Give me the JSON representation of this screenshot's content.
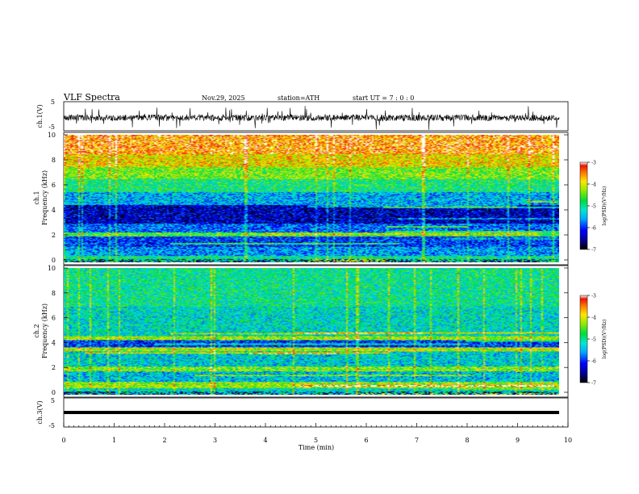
{
  "header": {
    "title": "VLF  Spectra",
    "date": "Nov.29, 2025",
    "station": "station=ATH",
    "start": "start  UT  =    7  : 0   : 0"
  },
  "chart_data": [
    {
      "type": "line",
      "name": "ch1-waveform",
      "ylabel": "ch.1(V)",
      "ylim": [
        -5,
        5
      ],
      "yticks": [
        "5",
        "-5"
      ],
      "xlim": [
        0,
        10
      ],
      "description_series": "noisy waveform centered near -0.5 V with amplitude about +/-2 V"
    },
    {
      "type": "heatmap",
      "name": "ch1-spectrogram",
      "ylabel": "ch.1\nFrequency  (kHz)",
      "ylabel_lines": [
        "ch.1",
        "Frequency  (kHz)"
      ],
      "ylim": [
        0,
        10
      ],
      "yticks": [
        "0",
        "2",
        "4",
        "6",
        "8",
        "10"
      ],
      "xlim": [
        0,
        10
      ],
      "colorbar": {
        "label": "log(PSD)(V²/Hz)",
        "range": [
          -7,
          -3
        ],
        "ticks": [
          "-3",
          "-4",
          "-5",
          "-6",
          "-7"
        ]
      },
      "bands": [
        {
          "from": 0.0,
          "to": 0.5,
          "level": -5.0
        },
        {
          "from": 0.5,
          "to": 1.2,
          "level": -5.6
        },
        {
          "from": 1.2,
          "to": 2.0,
          "level": -6.0
        },
        {
          "from": 2.0,
          "to": 2.3,
          "level": -4.6
        },
        {
          "from": 2.3,
          "to": 3.0,
          "level": -5.8
        },
        {
          "from": 3.0,
          "to": 4.5,
          "level": -6.4
        },
        {
          "from": 4.5,
          "to": 5.5,
          "level": -5.5
        },
        {
          "from": 5.5,
          "to": 6.5,
          "level": -4.9
        },
        {
          "from": 6.5,
          "to": 7.5,
          "level": -4.4
        },
        {
          "from": 7.5,
          "to": 8.5,
          "level": -3.9
        },
        {
          "from": 8.5,
          "to": 10.0,
          "level": -3.5
        }
      ]
    },
    {
      "type": "heatmap",
      "name": "ch2-spectrogram",
      "ylabel": "ch.2\nFrequency  (kHz)",
      "ylabel_lines": [
        "ch.2",
        "Frequency  (kHz)"
      ],
      "ylim": [
        0,
        10
      ],
      "yticks": [
        "0",
        "2",
        "4",
        "6",
        "8",
        "10"
      ],
      "xlim": [
        0,
        10
      ],
      "colorbar": {
        "label": "log(PSD)(V²/Hz)",
        "range": [
          -7,
          -3
        ],
        "ticks": [
          "-3",
          "-4",
          "-5",
          "-6",
          "-7"
        ]
      },
      "bands": [
        {
          "from": 0.0,
          "to": 0.5,
          "level": -5.2
        },
        {
          "from": 0.5,
          "to": 1.0,
          "level": -4.3
        },
        {
          "from": 1.0,
          "to": 1.8,
          "level": -5.4
        },
        {
          "from": 1.8,
          "to": 2.2,
          "level": -4.4
        },
        {
          "from": 2.2,
          "to": 3.4,
          "level": -5.3
        },
        {
          "from": 3.4,
          "to": 3.7,
          "level": -4.2
        },
        {
          "from": 3.7,
          "to": 4.3,
          "level": -6.0
        },
        {
          "from": 4.3,
          "to": 4.6,
          "level": -4.3
        },
        {
          "from": 4.6,
          "to": 7.0,
          "level": -5.2
        },
        {
          "from": 7.0,
          "to": 10.0,
          "level": -5.0
        }
      ]
    },
    {
      "type": "line",
      "name": "ch3-waveform",
      "ylabel": "ch.3(V)",
      "ylim": [
        -5,
        5
      ],
      "yticks": [
        "5",
        "-5"
      ],
      "xlim": [
        0,
        10
      ],
      "xlabel": "Time  (min)",
      "xticks": [
        "0",
        "1",
        "2",
        "3",
        "4",
        "5",
        "6",
        "7",
        "8",
        "9",
        "10"
      ],
      "description_series": "flat thick trace near -1.5 V"
    }
  ]
}
